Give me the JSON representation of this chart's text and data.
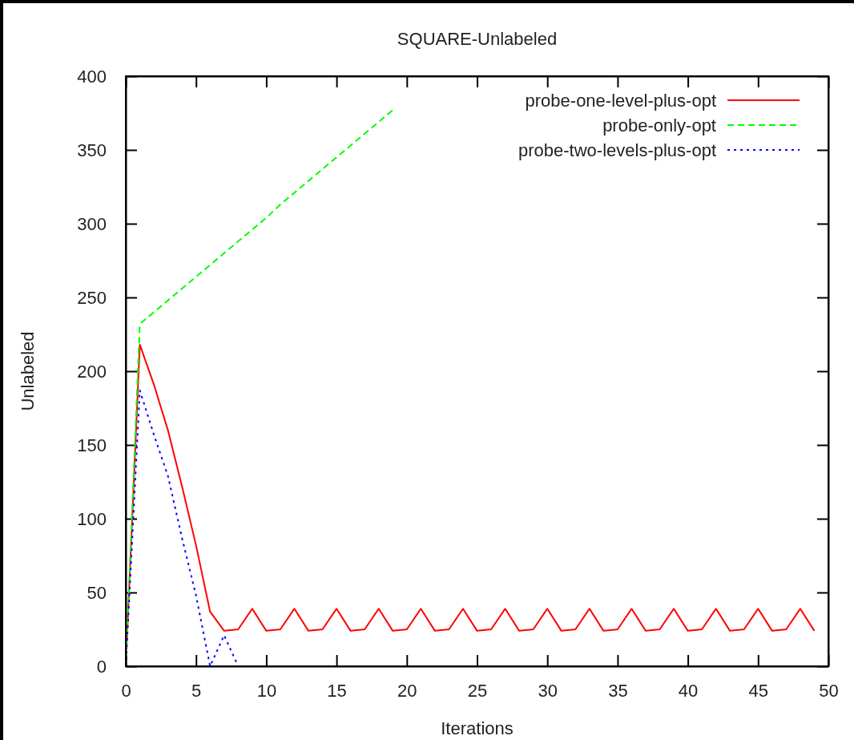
{
  "chart_data": {
    "type": "line",
    "title": "SQUARE-Unlabeled",
    "xlabel": "Iterations",
    "ylabel": "Unlabeled",
    "xlim": [
      0,
      50
    ],
    "ylim": [
      0,
      400
    ],
    "xticks": [
      0,
      5,
      10,
      15,
      20,
      25,
      30,
      35,
      40,
      45,
      50
    ],
    "yticks": [
      0,
      50,
      100,
      150,
      200,
      250,
      300,
      350,
      400
    ],
    "legend": "top right",
    "grid": false,
    "series": [
      {
        "name": "probe-one-level-plus-opt",
        "color": "#ff0000",
        "line_style": "solid",
        "x": [
          0,
          1,
          2,
          3,
          4,
          5,
          6,
          7,
          8,
          9,
          10,
          11,
          12,
          13,
          14,
          15,
          16,
          17,
          18,
          19,
          20,
          21,
          22,
          23,
          24,
          25,
          26,
          27,
          28,
          29,
          30,
          31,
          32,
          33,
          34,
          35,
          36,
          37,
          38,
          39,
          40,
          41,
          42,
          43,
          44,
          45,
          46,
          47,
          48,
          49
        ],
        "values": [
          0,
          218,
          191,
          160,
          122,
          82,
          37,
          24,
          25,
          39,
          24,
          25,
          39,
          24,
          25,
          39,
          24,
          25,
          39,
          24,
          25,
          39,
          24,
          25,
          39,
          24,
          25,
          39,
          24,
          25,
          39,
          24,
          25,
          39,
          24,
          25,
          39,
          24,
          25,
          39,
          24,
          25,
          39,
          24,
          25,
          39,
          24,
          25,
          39,
          24
        ]
      },
      {
        "name": "probe-only-opt",
        "color": "#00ff00",
        "line_style": "dashed",
        "x": [
          0,
          1,
          2,
          3,
          4,
          5,
          6,
          7,
          8,
          9,
          10,
          11,
          12,
          13,
          14,
          15,
          16,
          17,
          18,
          19
        ],
        "values": [
          0,
          232,
          240,
          248,
          256,
          264,
          272,
          280,
          288,
          296,
          304,
          313,
          321,
          329,
          337,
          345,
          353,
          361,
          369,
          377
        ]
      },
      {
        "name": "probe-two-levels-plus-opt",
        "color": "#0000ff",
        "line_style": "dotted",
        "x": [
          0,
          1,
          2,
          3,
          4,
          5,
          6,
          7,
          8
        ],
        "values": [
          0,
          187,
          157,
          129,
          87,
          48,
          0,
          21,
          0
        ]
      }
    ]
  }
}
